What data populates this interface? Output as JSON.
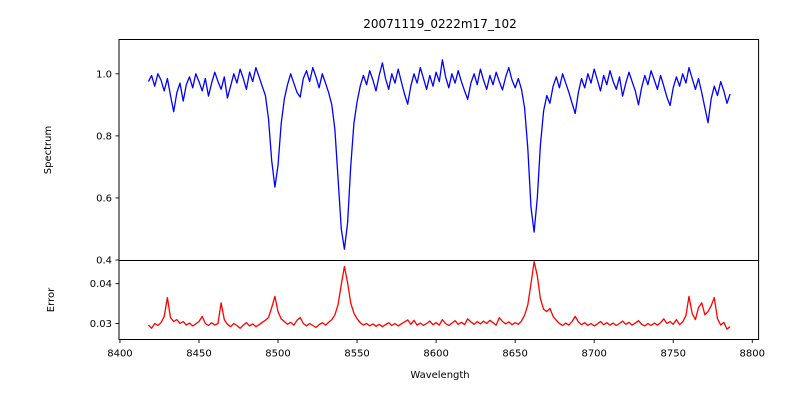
{
  "figure": {
    "background": "#ffffff",
    "text_color": "#000000"
  },
  "chart_data": {
    "type": "line",
    "title": "20071119_0222m17_102",
    "xlabel": "Wavelength",
    "grid": false,
    "legend": false,
    "xlim": [
      8399.4,
      8804.0
    ],
    "xticks": [
      8400,
      8450,
      8500,
      8550,
      8600,
      8650,
      8700,
      8750,
      8800
    ],
    "x_start": 8418,
    "x_step": 2,
    "panels": [
      {
        "ylabel": "Spectrum",
        "ylim": [
          0.3985,
          1.1105
        ],
        "yticks": [
          {
            "value": 1.0,
            "label": "1.0"
          },
          {
            "value": 0.8,
            "label": "0.8"
          },
          {
            "value": 0.6,
            "label": "0.6"
          },
          {
            "value": 0.4,
            "label": "0.4"
          }
        ],
        "series": [
          {
            "name": "spectrum",
            "color": "#0000ff",
            "values": [
              0.975,
              0.995,
              0.96,
              1.0,
              0.98,
              0.945,
              0.985,
              0.93,
              0.878,
              0.94,
              0.97,
              0.912,
              0.965,
              0.99,
              0.955,
              1.0,
              0.975,
              0.945,
              0.985,
              0.928,
              0.97,
              1.005,
              0.975,
              0.95,
              0.99,
              0.922,
              0.96,
              1.0,
              0.97,
              1.015,
              0.985,
              0.95,
              1.005,
              0.975,
              1.02,
              0.99,
              0.96,
              0.93,
              0.855,
              0.72,
              0.635,
              0.705,
              0.84,
              0.92,
              0.965,
              1.0,
              0.97,
              0.94,
              0.925,
              0.985,
              1.01,
              0.975,
              1.02,
              0.99,
              0.955,
              1.0,
              0.97,
              0.94,
              0.9,
              0.82,
              0.66,
              0.5,
              0.435,
              0.52,
              0.7,
              0.84,
              0.91,
              0.96,
              0.995,
              0.965,
              1.01,
              0.98,
              0.945,
              0.995,
              1.035,
              0.985,
              0.95,
              1.0,
              0.97,
              1.015,
              0.975,
              0.935,
              0.902,
              0.96,
              1.0,
              0.97,
              1.02,
              0.985,
              0.95,
              0.995,
              0.96,
              1.005,
              0.975,
              1.045,
              0.99,
              0.955,
              1.0,
              0.97,
              1.01,
              0.975,
              0.945,
              0.918,
              0.97,
              1.0,
              0.965,
              1.015,
              0.98,
              0.95,
              0.995,
              0.965,
              1.005,
              0.975,
              0.948,
              0.99,
              1.02,
              0.98,
              0.955,
              0.985,
              0.95,
              0.89,
              0.76,
              0.57,
              0.49,
              0.6,
              0.77,
              0.88,
              0.93,
              0.905,
              0.96,
              0.99,
              0.955,
              1.0,
              0.97,
              0.94,
              0.905,
              0.872,
              0.94,
              0.985,
              0.955,
              1.0,
              0.97,
              1.015,
              0.98,
              0.945,
              0.995,
              0.965,
              1.01,
              0.975,
              0.95,
              0.99,
              0.928,
              0.97,
              1.005,
              0.975,
              0.945,
              0.9,
              0.955,
              0.995,
              0.965,
              1.01,
              0.98,
              0.95,
              0.995,
              0.96,
              0.925,
              0.898,
              0.955,
              0.99,
              0.96,
              1.0,
              0.97,
              1.02,
              0.985,
              0.95,
              0.985,
              0.94,
              0.89,
              0.842,
              0.92,
              0.96,
              0.93,
              0.975,
              0.945,
              0.905,
              0.935
            ]
          }
        ]
      },
      {
        "ylabel": "Error",
        "ylim": [
          0.026,
          0.0458
        ],
        "yticks": [
          {
            "value": 0.04,
            "label": "0.04"
          },
          {
            "value": 0.03,
            "label": "0.03"
          }
        ],
        "series": [
          {
            "name": "error",
            "color": "#ff0000",
            "values": [
              0.0296,
              0.0288,
              0.03,
              0.0295,
              0.0302,
              0.0318,
              0.0365,
              0.0315,
              0.0305,
              0.031,
              0.03,
              0.0305,
              0.0296,
              0.0301,
              0.0294,
              0.0299,
              0.0305,
              0.0318,
              0.03,
              0.0295,
              0.0302,
              0.0296,
              0.03,
              0.0352,
              0.031,
              0.0298,
              0.0292,
              0.03,
              0.0295,
              0.0288,
              0.0296,
              0.0302,
              0.0294,
              0.0299,
              0.0292,
              0.0297,
              0.0303,
              0.0308,
              0.0315,
              0.034,
              0.0368,
              0.033,
              0.0312,
              0.0305,
              0.0298,
              0.0303,
              0.0296,
              0.0308,
              0.0315,
              0.03,
              0.0294,
              0.03,
              0.0295,
              0.029,
              0.0297,
              0.0302,
              0.0296,
              0.0303,
              0.031,
              0.0322,
              0.0348,
              0.0398,
              0.0443,
              0.0402,
              0.0352,
              0.0326,
              0.0312,
              0.0302,
              0.0296,
              0.03,
              0.0294,
              0.0299,
              0.0293,
              0.0298,
              0.0292,
              0.0297,
              0.0302,
              0.0295,
              0.03,
              0.0294,
              0.0299,
              0.0304,
              0.0309,
              0.0298,
              0.0308,
              0.0296,
              0.0301,
              0.0295,
              0.03,
              0.0306,
              0.0297,
              0.0302,
              0.0296,
              0.031,
              0.03,
              0.0295,
              0.0301,
              0.0307,
              0.0298,
              0.0303,
              0.0297,
              0.0312,
              0.0304,
              0.0298,
              0.0305,
              0.0299,
              0.0306,
              0.03,
              0.0308,
              0.0302,
              0.0296,
              0.0315,
              0.0305,
              0.0299,
              0.0304,
              0.0297,
              0.0302,
              0.0298,
              0.0306,
              0.0321,
              0.0347,
              0.04,
              0.0455,
              0.042,
              0.0362,
              0.0336,
              0.033,
              0.0338,
              0.0318,
              0.0308,
              0.03,
              0.0295,
              0.0301,
              0.0296,
              0.0305,
              0.0318,
              0.0304,
              0.0297,
              0.0302,
              0.0295,
              0.03,
              0.0294,
              0.0299,
              0.0305,
              0.0297,
              0.0302,
              0.0296,
              0.0301,
              0.0295,
              0.03,
              0.0306,
              0.0298,
              0.0303,
              0.0296,
              0.0301,
              0.0307,
              0.0298,
              0.0294,
              0.03,
              0.0295,
              0.0301,
              0.0296,
              0.0302,
              0.0312,
              0.03,
              0.0305,
              0.0298,
              0.031,
              0.0297,
              0.0304,
              0.032,
              0.0368,
              0.0325,
              0.031,
              0.034,
              0.0352,
              0.0322,
              0.033,
              0.0345,
              0.0365,
              0.0312,
              0.0296,
              0.0303,
              0.0286,
              0.0292
            ]
          }
        ]
      }
    ],
    "features": {
      "absorption_lines": [
        {
          "wavelength": 8498,
          "depth": 0.63
        },
        {
          "wavelength": 8542,
          "depth": 0.43
        },
        {
          "wavelength": 8662,
          "depth": 0.49
        }
      ],
      "error_baseline": 0.03,
      "error_peaks": [
        {
          "wavelength": 8430,
          "value": 0.036
        },
        {
          "wavelength": 8465,
          "value": 0.035
        },
        {
          "wavelength": 8498,
          "value": 0.037
        },
        {
          "wavelength": 8542,
          "value": 0.044
        },
        {
          "wavelength": 8662,
          "value": 0.0455
        },
        {
          "wavelength": 8760,
          "value": 0.037
        },
        {
          "wavelength": 8776,
          "value": 0.037
        }
      ]
    }
  }
}
